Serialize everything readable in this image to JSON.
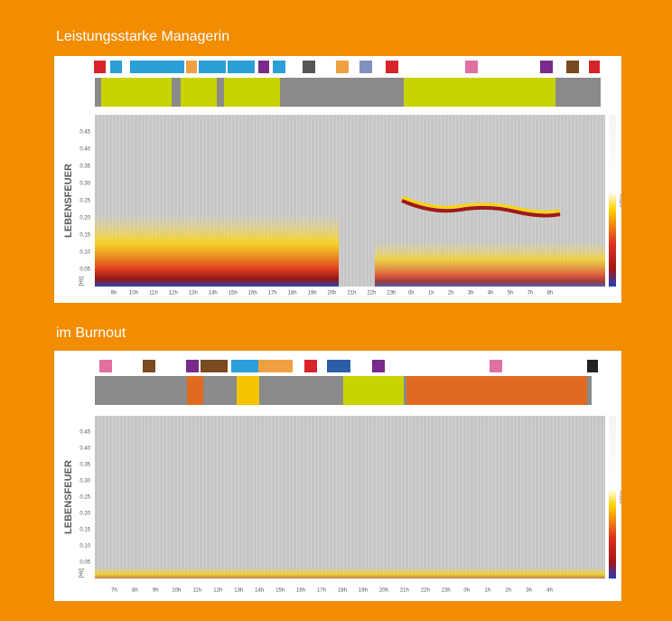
{
  "panels": [
    {
      "title": "Leistungsstarke Managerin",
      "y_label": "LEBENSFEUER",
      "y_unit": "[Hz]",
      "color_label": "POWER",
      "y_labels": [
        "0.45",
        "0.40",
        "0.35",
        "0.30",
        "0.25",
        "0.20",
        "0.15",
        "0.10",
        "0.05"
      ],
      "x_labels": [
        "9h",
        "10h",
        "11h",
        "12h",
        "13h",
        "14h",
        "15h",
        "16h",
        "17h",
        "18h",
        "19h",
        "20h",
        "21h",
        "22h",
        "23h",
        "0h",
        "1h",
        "2h",
        "3h",
        "4h",
        "5h",
        "7h",
        "8h"
      ]
    },
    {
      "title": "im Burnout",
      "y_label": "LEBENSFEUER",
      "y_unit": "[Hz]",
      "color_label": "POWER",
      "y_labels": [
        "0.45",
        "0.40",
        "0.35",
        "0.30",
        "0.25",
        "0.20",
        "0.15",
        "0.10",
        "0.05"
      ],
      "x_labels": [
        "7h",
        "8h",
        "9h",
        "10h",
        "11h",
        "12h",
        "13h",
        "14h",
        "15h",
        "16h",
        "17h",
        "18h",
        "19h",
        "20h",
        "21h",
        "22h",
        "23h",
        "0h",
        "1h",
        "2h",
        "3h",
        "4h"
      ]
    }
  ]
}
